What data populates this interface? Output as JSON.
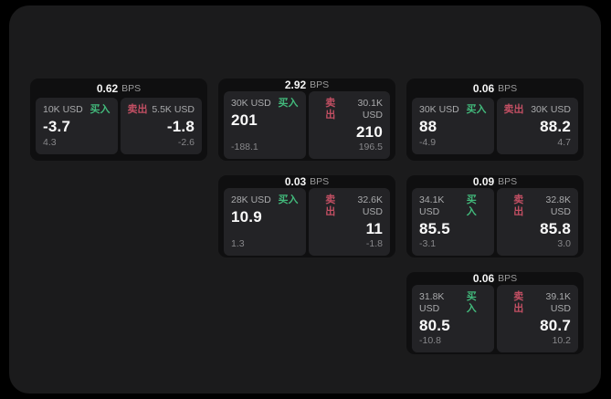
{
  "colors": {
    "page_bg": "#000000",
    "panel_bg": "#1b1b1c",
    "card_bg": "#0f0f10",
    "tile_bg": "#232326",
    "buy_green": "#42b97b",
    "sell_red": "#c24f63",
    "text_primary": "#fafafa",
    "text_secondary": "#a9aaac",
    "text_dim": "#87878a"
  },
  "labels": {
    "bps_unit": "BPS",
    "buy": "买入",
    "sell": "卖出"
  },
  "cards": [
    {
      "bps": "0.62",
      "buy": {
        "amount": "10K USD",
        "price": "-3.7",
        "delta": "4.3"
      },
      "sell": {
        "amount": "5.5K USD",
        "price": "-1.8",
        "delta": "-2.6"
      }
    },
    {
      "bps": "2.92",
      "buy": {
        "amount": "30K USD",
        "price": "201",
        "delta": "-188.1"
      },
      "sell": {
        "amount": "30.1K USD",
        "price": "210",
        "delta": "196.5"
      }
    },
    {
      "bps": "0.06",
      "buy": {
        "amount": "30K USD",
        "price": "88",
        "delta": "-4.9"
      },
      "sell": {
        "amount": "30K USD",
        "price": "88.2",
        "delta": "4.7"
      }
    },
    {
      "bps": "0.03",
      "buy": {
        "amount": "28K USD",
        "price": "10.9",
        "delta": "1.3"
      },
      "sell": {
        "amount": "32.6K USD",
        "price": "11",
        "delta": "-1.8"
      }
    },
    {
      "bps": "0.09",
      "buy": {
        "amount": "34.1K USD",
        "price": "85.5",
        "delta": "-3.1"
      },
      "sell": {
        "amount": "32.8K USD",
        "price": "85.8",
        "delta": "3.0"
      }
    },
    {
      "bps": "0.06",
      "buy": {
        "amount": "31.8K USD",
        "price": "80.5",
        "delta": "-10.8"
      },
      "sell": {
        "amount": "39.1K USD",
        "price": "80.7",
        "delta": "10.2"
      }
    }
  ]
}
